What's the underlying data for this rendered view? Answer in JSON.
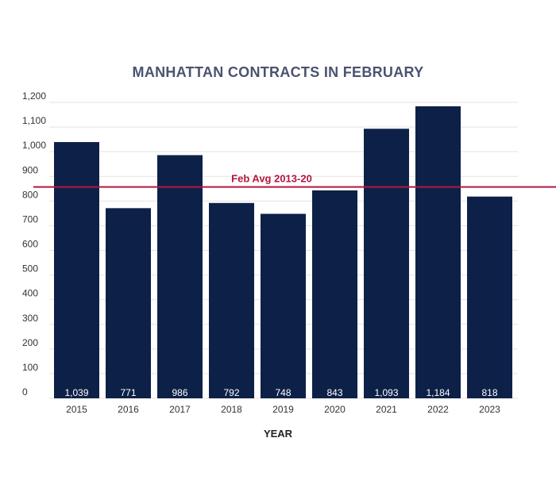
{
  "chart_data": {
    "type": "bar",
    "title": "MANHATTAN CONTRACTS IN FEBRUARY",
    "xlabel": "YEAR",
    "ylabel": "",
    "categories": [
      "2015",
      "2016",
      "2017",
      "2018",
      "2019",
      "2020",
      "2021",
      "2022",
      "2023"
    ],
    "values": [
      1039,
      771,
      986,
      792,
      748,
      843,
      1093,
      1184,
      818
    ],
    "data_labels": [
      "1,039",
      "771",
      "986",
      "792",
      "748",
      "843",
      "1,093",
      "1,184",
      "818"
    ],
    "ylim": [
      0,
      1200
    ],
    "yticks": [
      "0",
      "100",
      "200",
      "300",
      "400",
      "500",
      "600",
      "700",
      "800",
      "900",
      "1,000",
      "1,100",
      "1,200"
    ],
    "grid": true,
    "reference_line": {
      "label": "Feb Avg 2013-20",
      "value": 857,
      "color": "#b5163f"
    },
    "bar_color": "#0d2148"
  }
}
